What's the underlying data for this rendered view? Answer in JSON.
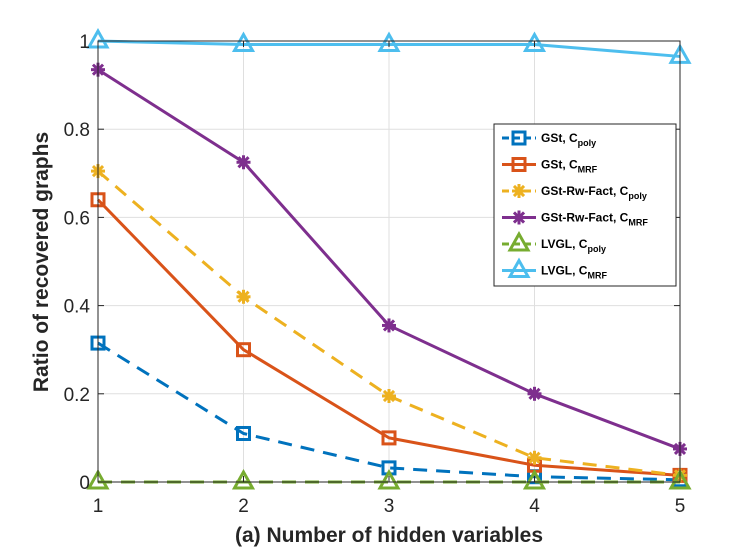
{
  "chart_data": {
    "type": "line",
    "title": "",
    "xlabel": "(a) Number of hidden variables",
    "ylabel": "Ratio of recovered graphs",
    "x": [
      1,
      2,
      3,
      4,
      5
    ],
    "xlim": [
      1,
      5
    ],
    "ylim": [
      0,
      1
    ],
    "xticks": [
      "1",
      "2",
      "3",
      "4",
      "5"
    ],
    "yticks": [
      "0",
      "0.2",
      "0.4",
      "0.6",
      "0.8",
      "1"
    ],
    "grid": true,
    "legend_position": "right",
    "series": [
      {
        "name": "GSt, C",
        "sub": "poly",
        "values": [
          0.315,
          0.11,
          0.032,
          0.012,
          0.005
        ],
        "color": "#0072BD",
        "dash": true,
        "marker": "square"
      },
      {
        "name": "GSt, C",
        "sub": "MRF",
        "values": [
          0.64,
          0.3,
          0.1,
          0.038,
          0.015
        ],
        "color": "#D95319",
        "dash": false,
        "marker": "square"
      },
      {
        "name": "GSt-Rw-Fact, C",
        "sub": "poly",
        "values": [
          0.705,
          0.42,
          0.195,
          0.055,
          0.015
        ],
        "color": "#EDB120",
        "dash": true,
        "marker": "asterisk"
      },
      {
        "name": "GSt-Rw-Fact, C",
        "sub": "MRF",
        "values": [
          0.935,
          0.725,
          0.355,
          0.2,
          0.075
        ],
        "color": "#7E2F8E",
        "dash": false,
        "marker": "asterisk"
      },
      {
        "name": "LVGL, C",
        "sub": "poly",
        "values": [
          0.0,
          0.0,
          0.0,
          0.0,
          0.0
        ],
        "color": "#77AC30",
        "dash": true,
        "marker": "triangle"
      },
      {
        "name": "LVGL, C",
        "sub": "MRF",
        "values": [
          1.0,
          0.992,
          0.992,
          0.992,
          0.965
        ],
        "color": "#4DBEEE",
        "dash": false,
        "marker": "triangle"
      }
    ]
  }
}
